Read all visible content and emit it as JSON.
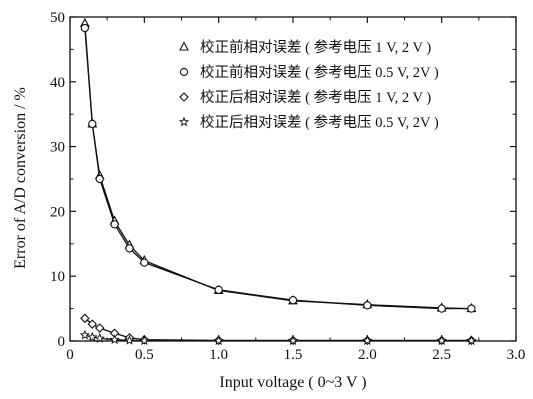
{
  "chart_data": {
    "type": "line",
    "title": "",
    "xlabel": "Input voltage ( 0~3 V )",
    "ylabel": "Error of A/D conversion / %",
    "xlim": [
      0,
      3.0
    ],
    "ylim": [
      0,
      50
    ],
    "xticks": [
      "0",
      "0.5",
      "1.0",
      "1.5",
      "2.0",
      "2.5",
      "3.0"
    ],
    "yticks": [
      "0",
      "10",
      "20",
      "30",
      "40",
      "50"
    ],
    "grid": false,
    "legend_position": "top-right",
    "series": [
      {
        "name": "校正前相对误差 ( 参考电压 1 V, 2 V )",
        "marker": "triangle",
        "x": [
          0.1,
          0.15,
          0.2,
          0.3,
          0.4,
          0.5,
          1.0,
          1.5,
          2.0,
          2.5,
          2.7
        ],
        "y": [
          49.0,
          33.5,
          25.5,
          18.5,
          14.8,
          12.4,
          7.8,
          6.2,
          5.6,
          5.1,
          5.0
        ]
      },
      {
        "name": "校正前相对误差 ( 参考电压 0.5 V, 2V )",
        "marker": "circle",
        "x": [
          0.1,
          0.15,
          0.2,
          0.3,
          0.4,
          0.5,
          1.0,
          1.5,
          2.0,
          2.5,
          2.7
        ],
        "y": [
          48.3,
          33.5,
          25.0,
          18.0,
          14.3,
          12.1,
          7.9,
          6.3,
          5.5,
          5.0,
          5.0
        ]
      },
      {
        "name": "校正后相对误差 ( 参考电压 1 V, 2 V )",
        "marker": "diamond",
        "x": [
          0.1,
          0.15,
          0.2,
          0.3,
          0.4,
          0.5,
          1.0,
          1.5,
          2.0,
          2.5,
          2.7
        ],
        "y": [
          3.5,
          2.6,
          2.0,
          1.2,
          0.5,
          0.2,
          0.1,
          0.1,
          0.1,
          0.1,
          0.1
        ]
      },
      {
        "name": "校正后相对误差 ( 参考电压 0.5 V, 2V )",
        "marker": "star",
        "x": [
          0.1,
          0.15,
          0.2,
          0.3,
          0.4,
          0.5,
          1.0,
          1.5,
          2.0,
          2.5,
          2.7
        ],
        "y": [
          0.9,
          0.6,
          0.4,
          0.2,
          0.1,
          0.05,
          0.05,
          0.05,
          0.05,
          0.05,
          0.05
        ]
      }
    ]
  }
}
